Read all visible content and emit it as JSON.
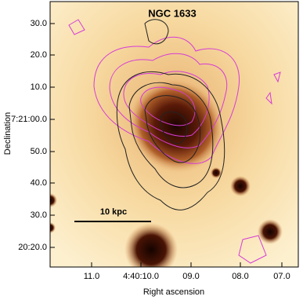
{
  "figure": {
    "title": "NGC 1633",
    "x_label": "Right ascension",
    "y_label": "Declination",
    "x_ticks": [
      "11.0",
      "4:40:10.0",
      "09.0",
      "08.0",
      "07.0"
    ],
    "y_ticks": [
      "30.0",
      "20.0",
      "10.0",
      "7:21:00.0",
      "50.0",
      "40.0",
      "30.0",
      "20:20.0"
    ],
    "scale_bar": "10 kpc"
  }
}
